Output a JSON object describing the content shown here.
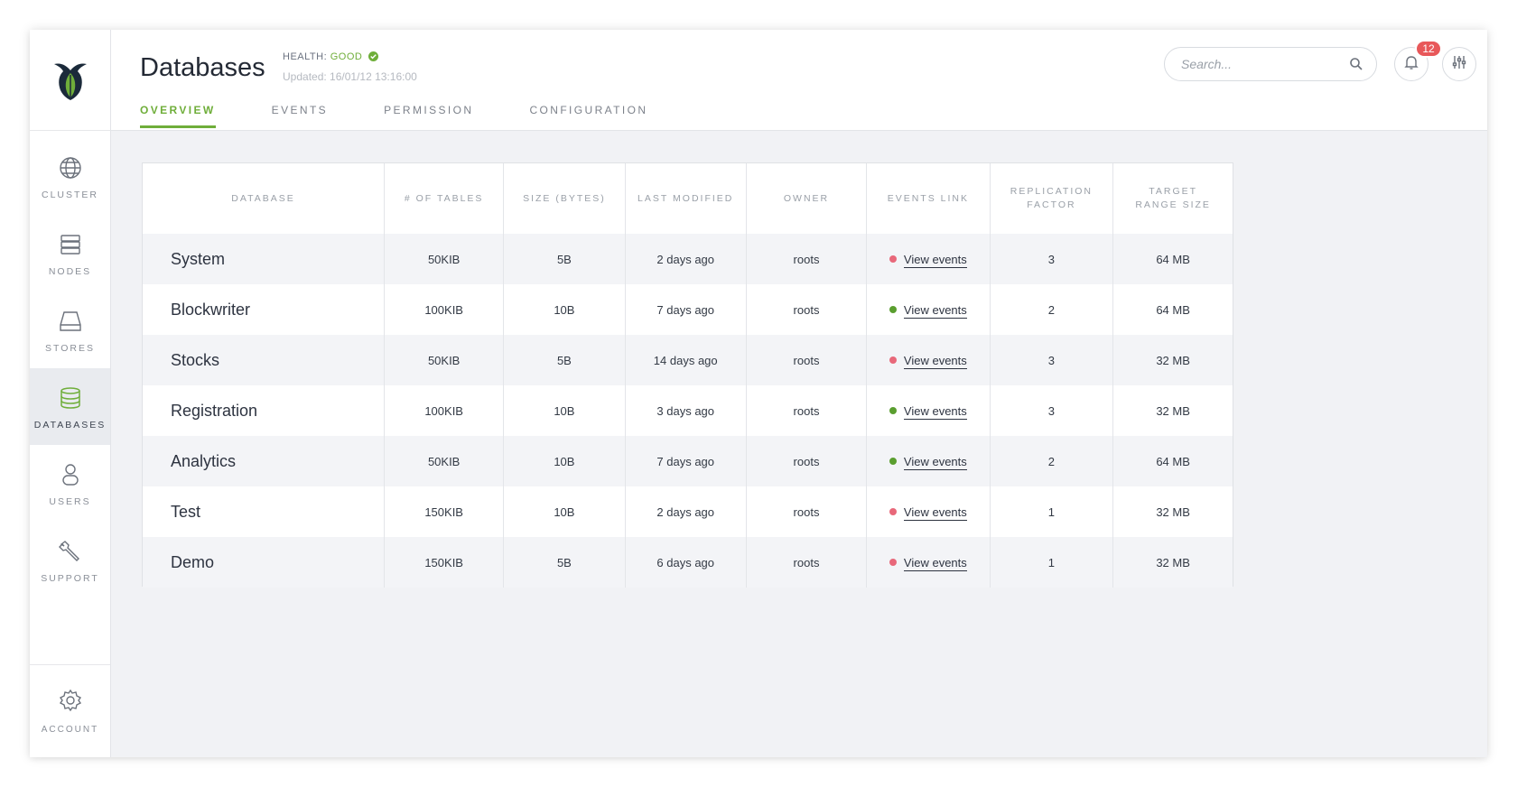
{
  "header": {
    "title": "Databases",
    "health_label": "HEALTH:",
    "health_value": "GOOD",
    "updated": "Updated: 16/01/12 13:16:00",
    "search_placeholder": "Search...",
    "notification_count": "12"
  },
  "tabs": [
    {
      "label": "OVERVIEW",
      "active": true
    },
    {
      "label": "EVENTS",
      "active": false
    },
    {
      "label": "PERMISSION",
      "active": false
    },
    {
      "label": "CONFIGURATION",
      "active": false
    }
  ],
  "sidebar": {
    "items": [
      {
        "label": "CLUSTER",
        "icon": "globe-icon"
      },
      {
        "label": "NODES",
        "icon": "server-icon"
      },
      {
        "label": "STORES",
        "icon": "drive-icon"
      },
      {
        "label": "DATABASES",
        "icon": "database-icon",
        "active": true
      },
      {
        "label": "USERS",
        "icon": "user-icon"
      },
      {
        "label": "SUPPORT",
        "icon": "wrench-icon"
      }
    ],
    "account_label": "ACCOUNT"
  },
  "colors": {
    "accent": "#6fae3a",
    "status_ok": "#5a9e2f",
    "status_error": "#e8687a",
    "badge": "#e8585a"
  },
  "table": {
    "columns": [
      "DATABASE",
      "# OF TABLES",
      "SIZE (BYTES)",
      "LAST MODIFIED",
      "OWNER",
      "EVENTS LINK",
      "REPLICATION FACTOR",
      "TARGET RANGE SIZE"
    ],
    "rows": [
      {
        "name": "System",
        "tables": "50KIB",
        "size": "5B",
        "modified": "2 days ago",
        "owner": "roots",
        "status": "error",
        "link": "View events",
        "replication": "3",
        "range": "64 MB"
      },
      {
        "name": "Blockwriter",
        "tables": "100KIB",
        "size": "10B",
        "modified": "7 days ago",
        "owner": "roots",
        "status": "ok",
        "link": "View events",
        "replication": "2",
        "range": "64 MB"
      },
      {
        "name": "Stocks",
        "tables": "50KIB",
        "size": "5B",
        "modified": "14 days ago",
        "owner": "roots",
        "status": "error",
        "link": "View events",
        "replication": "3",
        "range": "32 MB"
      },
      {
        "name": "Registration",
        "tables": "100KIB",
        "size": "10B",
        "modified": "3 days ago",
        "owner": "roots",
        "status": "ok",
        "link": "View events",
        "replication": "3",
        "range": "32 MB"
      },
      {
        "name": "Analytics",
        "tables": "50KIB",
        "size": "10B",
        "modified": "7 days ago",
        "owner": "roots",
        "status": "ok",
        "link": "View events",
        "replication": "2",
        "range": "64 MB"
      },
      {
        "name": "Test",
        "tables": "150KIB",
        "size": "10B",
        "modified": "2 days ago",
        "owner": "roots",
        "status": "error",
        "link": "View events",
        "replication": "1",
        "range": "32 MB"
      },
      {
        "name": "Demo",
        "tables": "150KIB",
        "size": "5B",
        "modified": "6 days ago",
        "owner": "roots",
        "status": "error",
        "link": "View events",
        "replication": "1",
        "range": "32 MB"
      }
    ]
  }
}
